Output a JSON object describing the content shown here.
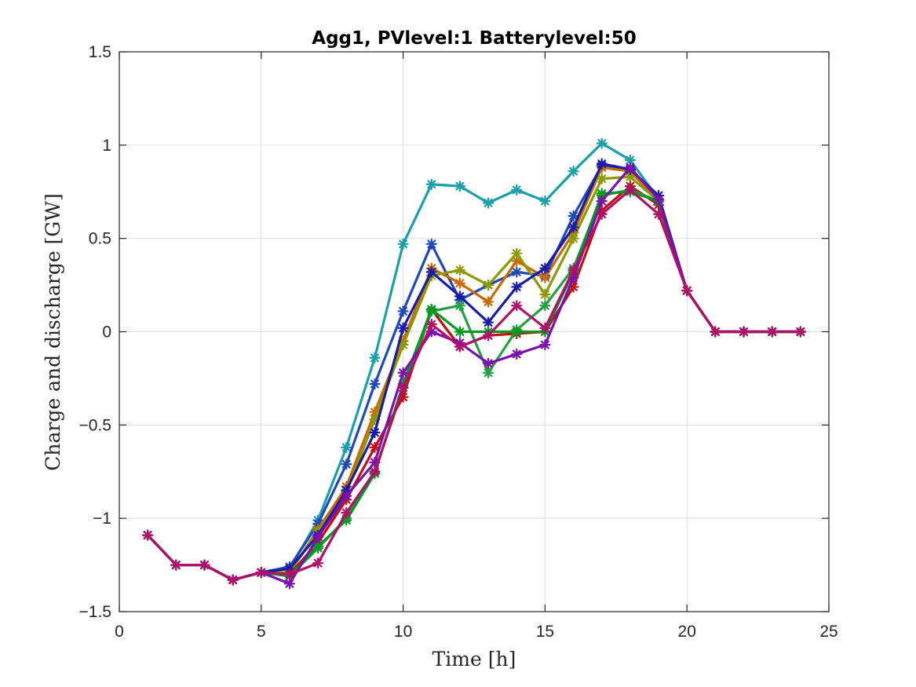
{
  "chart_data": {
    "type": "line",
    "title": "Agg1, PVlevel:1 Batterylevel:50",
    "xlabel": "Time [h]",
    "ylabel": "Charge and discharge [GW]",
    "xlim": [
      0,
      25
    ],
    "ylim": [
      -1.5,
      1.5
    ],
    "xticks": [
      0,
      5,
      10,
      15,
      20,
      25
    ],
    "yticks": [
      -1.5,
      -1,
      -0.5,
      0,
      0.5,
      1,
      1.5
    ],
    "xtick_labels": [
      "0",
      "5",
      "10",
      "15",
      "20",
      "25"
    ],
    "ytick_labels": [
      "−1.5",
      "−1",
      "−0.5",
      "0",
      "0.5",
      "1",
      "1.5"
    ],
    "grid": true,
    "marker": "asterisk",
    "x": [
      1,
      2,
      3,
      4,
      5,
      6,
      7,
      8,
      9,
      10,
      11,
      12,
      13,
      14,
      15,
      16,
      17,
      18,
      19,
      20,
      21,
      22,
      23,
      24
    ],
    "series": [
      {
        "color": "#1aa0a8",
        "values": [
          -1.09,
          -1.25,
          -1.25,
          -1.33,
          -1.29,
          -1.27,
          -1.01,
          -0.62,
          -0.14,
          0.47,
          0.79,
          0.78,
          0.69,
          0.76,
          0.7,
          0.86,
          1.01,
          0.92,
          0.71,
          0.22,
          0.0,
          0.0,
          0.0,
          0.0
        ]
      },
      {
        "color": "#1f48b8",
        "values": [
          -1.09,
          -1.25,
          -1.25,
          -1.33,
          -1.29,
          -1.26,
          -1.03,
          -0.71,
          -0.28,
          0.11,
          0.47,
          0.17,
          0.25,
          0.32,
          0.3,
          0.62,
          0.89,
          0.87,
          0.71,
          0.22,
          0.0,
          0.0,
          0.0,
          0.0
        ]
      },
      {
        "color": "#c96a00",
        "values": [
          -1.09,
          -1.25,
          -1.25,
          -1.33,
          -1.29,
          -1.29,
          -1.06,
          -0.83,
          -0.43,
          -0.05,
          0.34,
          0.26,
          0.16,
          0.38,
          0.29,
          0.53,
          0.88,
          0.86,
          0.7,
          0.22,
          0.0,
          0.0,
          0.0,
          0.0
        ]
      },
      {
        "color": "#8a9a00",
        "values": [
          -1.09,
          -1.25,
          -1.25,
          -1.33,
          -1.29,
          -1.29,
          -1.07,
          -0.86,
          -0.47,
          -0.07,
          0.3,
          0.33,
          0.25,
          0.42,
          0.2,
          0.5,
          0.82,
          0.83,
          0.7,
          0.22,
          0.0,
          0.0,
          0.0,
          0.0
        ]
      },
      {
        "color": "#1a1aa8",
        "values": [
          -1.09,
          -1.25,
          -1.25,
          -1.33,
          -1.29,
          -1.27,
          -1.09,
          -0.85,
          -0.54,
          0.02,
          0.32,
          0.19,
          0.05,
          0.24,
          0.34,
          0.56,
          0.9,
          0.87,
          0.73,
          0.22,
          0.0,
          0.0,
          0.0,
          0.0
        ]
      },
      {
        "color": "#c01010",
        "values": [
          -1.09,
          -1.25,
          -1.25,
          -1.33,
          -1.29,
          -1.3,
          -1.13,
          -0.9,
          -0.62,
          -0.35,
          0.12,
          -0.08,
          -0.02,
          -0.01,
          0.0,
          0.24,
          0.65,
          0.78,
          0.68,
          0.22,
          0.0,
          0.0,
          0.0,
          0.0
        ]
      },
      {
        "color": "#23a040",
        "values": [
          -1.09,
          -1.25,
          -1.25,
          -1.33,
          -1.29,
          -1.31,
          -1.16,
          -1.0,
          -0.75,
          -0.3,
          0.11,
          0.14,
          -0.22,
          0.01,
          0.14,
          0.34,
          0.73,
          0.76,
          0.7,
          0.22,
          0.0,
          0.0,
          0.0,
          0.0
        ]
      },
      {
        "color": "#009a20",
        "values": [
          -1.09,
          -1.25,
          -1.25,
          -1.33,
          -1.29,
          -1.31,
          -1.15,
          -1.01,
          -0.76,
          -0.28,
          0.12,
          0.0,
          0.0,
          0.0,
          0.0,
          0.32,
          0.74,
          0.75,
          0.7,
          0.22,
          0.0,
          0.0,
          0.0,
          0.0
        ]
      },
      {
        "color": "#7a10b0",
        "values": [
          -1.09,
          -1.25,
          -1.25,
          -1.33,
          -1.29,
          -1.35,
          -1.1,
          -0.88,
          -0.7,
          -0.22,
          0.0,
          -0.06,
          -0.17,
          -0.12,
          -0.07,
          0.29,
          0.7,
          0.88,
          0.71,
          0.22,
          0.0,
          0.0,
          0.0,
          0.0
        ]
      },
      {
        "color": "#b0106a",
        "values": [
          -1.09,
          -1.25,
          -1.25,
          -1.33,
          -1.29,
          -1.3,
          -1.24,
          -0.97,
          -0.75,
          -0.3,
          0.04,
          -0.08,
          -0.02,
          0.14,
          0.02,
          0.33,
          0.63,
          0.76,
          0.63,
          0.22,
          0.0,
          0.0,
          0.0,
          0.0
        ]
      }
    ]
  }
}
